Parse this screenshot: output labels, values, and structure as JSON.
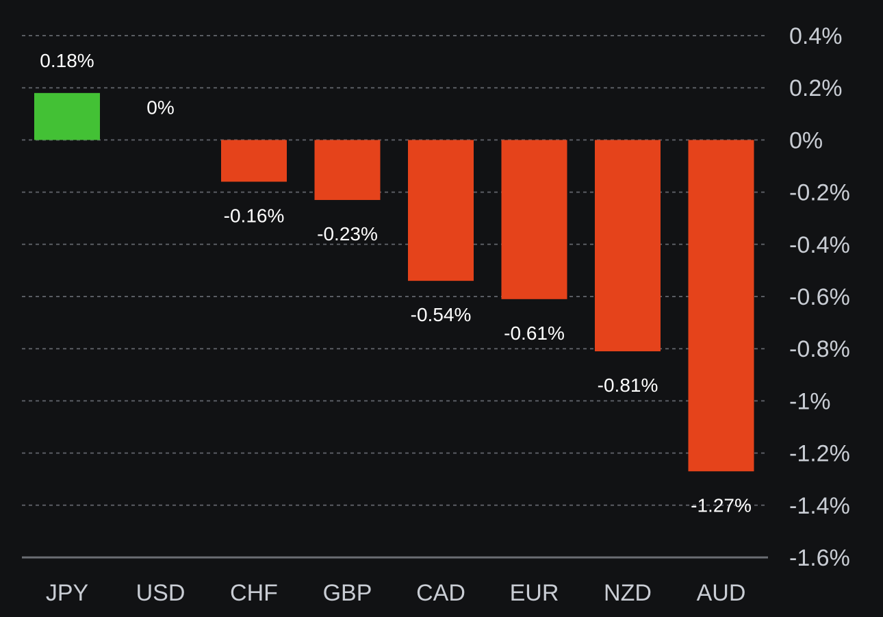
{
  "chart_data": {
    "type": "bar",
    "title": "",
    "xlabel": "",
    "ylabel": "",
    "categories": [
      "JPY",
      "USD",
      "CHF",
      "GBP",
      "CAD",
      "EUR",
      "NZD",
      "AUD"
    ],
    "values": [
      0.18,
      0,
      -0.16,
      -0.23,
      -0.54,
      -0.61,
      -0.81,
      -1.27
    ],
    "value_labels": [
      "0.18%",
      "0%",
      "-0.16%",
      "-0.23%",
      "-0.54%",
      "-0.61%",
      "-0.81%",
      "-1.27%"
    ],
    "ylim": [
      -1.6,
      0.4
    ],
    "yticks": [
      0.4,
      0.2,
      0,
      -0.2,
      -0.4,
      -0.6,
      -0.8,
      -1,
      -1.2,
      -1.4,
      -1.6
    ],
    "ytick_labels": [
      "0.4%",
      "0.2%",
      "0%",
      "-0.2%",
      "-0.4%",
      "-0.6%",
      "-0.8%",
      "-1%",
      "-1.2%",
      "-1.4%",
      "-1.6%"
    ],
    "y_axis_side": "right",
    "grid": true,
    "grid_style": "dashed",
    "legend": "none"
  },
  "colors": {
    "background": "#111214",
    "positive": "#43c135",
    "negative": "#e5431b",
    "grid": "#5a5d63",
    "axis_line": "#6a6d73",
    "tick_text": "#c9cdd4",
    "value_text": "#ffffff"
  }
}
